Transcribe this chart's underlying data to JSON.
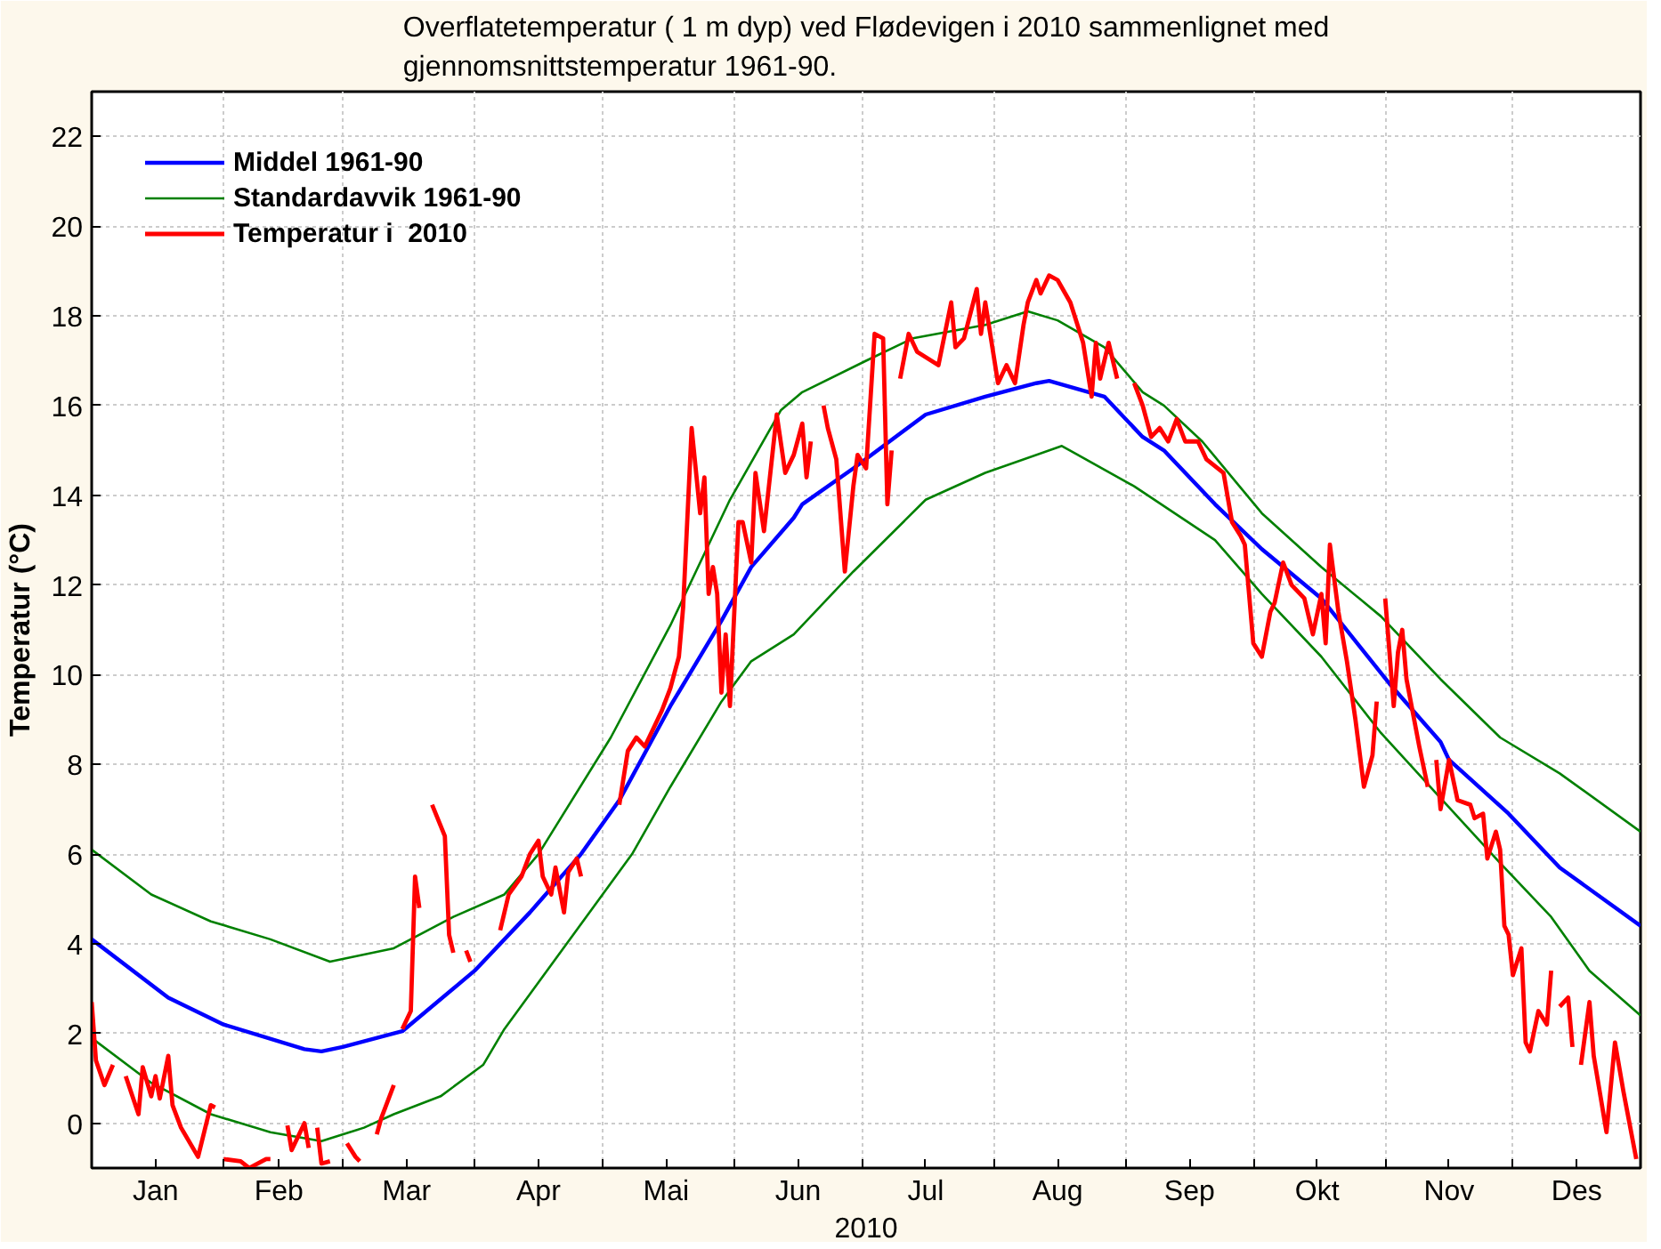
{
  "chart_data": {
    "type": "line",
    "title": "Overflatetemperatur ( 1 m dyp) ved Flødevigen i 2010 sammenlignet med gjennomsnittstemperatur 1961-90.",
    "xlabel": "2010",
    "ylabel": "Temperatur (°C)",
    "xlim": [
      "2010-01-01",
      "2010-12-31"
    ],
    "ylim": [
      -1,
      23
    ],
    "yticks": [
      0,
      2,
      4,
      6,
      8,
      10,
      12,
      14,
      16,
      18,
      20,
      22
    ],
    "xticks": [
      {
        "value": "2010-01-16",
        "label": "Jan"
      },
      {
        "value": "2010-02-01",
        "label": null
      },
      {
        "value": "2010-02-14",
        "label": "Feb"
      },
      {
        "value": "2010-03-01",
        "label": null
      },
      {
        "value": "2010-03-16",
        "label": "Mar"
      },
      {
        "value": "2010-04-01",
        "label": null
      },
      {
        "value": "2010-04-16",
        "label": "Apr"
      },
      {
        "value": "2010-05-01",
        "label": null
      },
      {
        "value": "2010-05-16",
        "label": "Mai"
      },
      {
        "value": "2010-06-01",
        "label": null
      },
      {
        "value": "2010-06-16",
        "label": "Jun"
      },
      {
        "value": "2010-07-01",
        "label": null
      },
      {
        "value": "2010-07-16",
        "label": "Jul"
      },
      {
        "value": "2010-08-01",
        "label": null
      },
      {
        "value": "2010-08-16",
        "label": "Aug"
      },
      {
        "value": "2010-09-01",
        "label": null
      },
      {
        "value": "2010-09-16",
        "label": "Sep"
      },
      {
        "value": "2010-10-01",
        "label": null
      },
      {
        "value": "2010-10-16",
        "label": "Okt"
      },
      {
        "value": "2010-11-01",
        "label": null
      },
      {
        "value": "2010-11-16",
        "label": "Nov"
      },
      {
        "value": "2010-12-01",
        "label": null
      },
      {
        "value": "2010-12-16",
        "label": "Des"
      }
    ],
    "grid": true,
    "legend": "top left",
    "series": [
      {
        "name": "Middel 1961-90",
        "color": "#0000ff",
        "x": [
          "2010-01-01",
          "2010-01-19",
          "2010-02-01",
          "2010-02-20",
          "2010-02-24",
          "2010-03-01",
          "2010-03-15",
          "2010-04-01",
          "2010-04-14",
          "2010-04-26",
          "2010-05-05",
          "2010-05-13",
          "2010-05-17",
          "2010-05-29",
          "2010-06-05",
          "2010-06-15",
          "2010-06-17",
          "2010-06-29",
          "2010-07-16",
          "2010-07-30",
          "2010-08-11",
          "2010-08-14",
          "2010-08-27",
          "2010-09-05",
          "2010-09-10",
          "2010-09-22",
          "2010-10-03",
          "2010-10-17",
          "2010-11-02",
          "2010-11-14",
          "2010-11-16",
          "2010-11-30",
          "2010-12-12",
          "2010-12-31"
        ],
        "values": [
          4.1,
          2.8,
          2.2,
          1.65,
          1.6,
          1.7,
          2.05,
          3.4,
          4.7,
          6.0,
          7.2,
          8.6,
          9.3,
          11.2,
          12.4,
          13.5,
          13.8,
          14.6,
          15.8,
          16.2,
          16.5,
          16.55,
          16.2,
          15.3,
          15.0,
          13.8,
          12.8,
          11.7,
          9.8,
          8.5,
          8.1,
          6.9,
          5.7,
          4.4
        ]
      },
      {
        "name": "Standardavvik 1961-90",
        "color": "#008000",
        "x": [
          "2010-01-01",
          "2010-01-15",
          "2010-01-29",
          "2010-02-12",
          "2010-02-26",
          "2010-03-13",
          "2010-03-27",
          "2010-04-08",
          "2010-04-16",
          "2010-05-03",
          "2010-05-17",
          "2010-05-31",
          "2010-06-12",
          "2010-06-17",
          "2010-07-02",
          "2010-07-13",
          "2010-07-30",
          "2010-08-09",
          "2010-08-16",
          "2010-08-27",
          "2010-09-05",
          "2010-09-10",
          "2010-09-19",
          "2010-10-03",
          "2010-10-17",
          "2010-10-31",
          "2010-11-14",
          "2010-11-28",
          "2010-12-12",
          "2010-12-31"
        ],
        "values": [
          6.1,
          5.1,
          4.5,
          4.1,
          3.6,
          3.9,
          4.6,
          5.1,
          6.0,
          8.6,
          11.1,
          13.9,
          15.9,
          16.3,
          17.0,
          17.5,
          17.8,
          18.1,
          17.9,
          17.3,
          16.3,
          16.0,
          15.2,
          13.6,
          12.4,
          11.3,
          9.9,
          8.6,
          7.8,
          6.5
        ]
      },
      {
        "color": "#008000",
        "x": [
          "2010-01-01",
          "2010-01-15",
          "2010-01-29",
          "2010-02-12",
          "2010-02-24",
          "2010-03-06",
          "2010-03-13",
          "2010-03-24",
          "2010-04-03",
          "2010-04-08",
          "2010-05-08",
          "2010-05-17",
          "2010-05-29",
          "2010-06-05",
          "2010-06-15",
          "2010-06-20",
          "2010-06-29",
          "2010-07-16",
          "2010-07-30",
          "2010-08-17",
          "2010-09-03",
          "2010-09-22",
          "2010-10-03",
          "2010-10-17",
          "2010-10-31",
          "2010-11-14",
          "2010-11-28",
          "2010-12-10",
          "2010-12-19",
          "2010-12-31"
        ],
        "values": [
          1.9,
          0.9,
          0.2,
          -0.2,
          -0.4,
          -0.1,
          0.2,
          0.6,
          1.3,
          2.1,
          6.0,
          7.5,
          9.4,
          10.3,
          10.9,
          11.4,
          12.3,
          13.9,
          14.5,
          15.1,
          14.2,
          13.0,
          11.8,
          10.4,
          8.7,
          7.25,
          5.8,
          4.6,
          3.4,
          2.4
        ]
      },
      {
        "name": "Temperatur i  2010",
        "color": "#ff0000",
        "x": [
          "2010-01-01",
          "2010-01-02",
          "2010-01-04",
          "2010-01-06",
          "2010-01-07",
          "2010-01-09",
          "2010-01-12",
          "2010-01-13",
          "2010-01-15",
          "2010-01-16",
          "2010-01-17",
          "2010-01-19",
          "2010-01-20",
          "2010-01-22",
          "2010-01-26",
          "2010-01-29",
          "2010-01-30",
          "2010-01-31",
          "2010-02-01",
          "2010-02-05",
          "2010-02-07",
          "2010-02-11",
          "2010-02-12",
          "2010-02-13",
          "2010-02-16",
          "2010-02-17",
          "2010-02-20",
          "2010-02-21",
          "2010-02-22",
          "2010-02-23",
          "2010-02-24",
          "2010-02-26",
          "2010-02-27",
          "2010-03-02",
          "2010-03-04",
          "2010-03-05",
          "2010-03-06",
          "2010-03-09",
          "2010-03-10",
          "2010-03-13",
          "2010-03-14",
          "2010-03-15",
          "2010-03-17",
          "2010-03-18",
          "2010-03-19",
          "2010-03-20",
          "2010-03-22",
          "2010-03-25",
          "2010-03-26",
          "2010-03-27",
          "2010-03-28",
          "2010-03-30",
          "2010-03-31",
          "2010-04-01",
          "2010-04-07",
          "2010-04-09",
          "2010-04-12",
          "2010-04-14",
          "2010-04-16",
          "2010-04-17",
          "2010-04-19",
          "2010-04-20",
          "2010-04-22",
          "2010-04-23",
          "2010-04-25",
          "2010-04-26",
          "2010-04-27",
          "2010-05-05",
          "2010-05-07",
          "2010-05-09",
          "2010-05-11",
          "2010-05-13",
          "2010-05-15",
          "2010-05-17",
          "2010-05-19",
          "2010-05-20",
          "2010-05-22",
          "2010-05-24",
          "2010-05-25",
          "2010-05-26",
          "2010-05-27",
          "2010-05-28",
          "2010-05-29",
          "2010-05-30",
          "2010-05-31",
          "2010-06-02",
          "2010-06-03",
          "2010-06-05",
          "2010-06-06",
          "2010-06-08",
          "2010-06-11",
          "2010-06-13",
          "2010-06-15",
          "2010-06-17",
          "2010-06-18",
          "2010-06-19",
          "2010-06-20",
          "2010-06-22",
          "2010-06-23",
          "2010-06-25",
          "2010-06-27",
          "2010-06-29",
          "2010-06-30",
          "2010-07-02",
          "2010-07-04",
          "2010-07-06",
          "2010-07-07",
          "2010-07-08",
          "2010-07-09",
          "2010-07-10",
          "2010-07-12",
          "2010-07-14",
          "2010-07-19",
          "2010-07-22",
          "2010-07-23",
          "2010-07-25",
          "2010-07-28",
          "2010-07-29",
          "2010-07-30",
          "2010-08-02",
          "2010-08-04",
          "2010-08-06",
          "2010-08-08",
          "2010-08-09",
          "2010-08-11",
          "2010-08-12",
          "2010-08-14",
          "2010-08-16",
          "2010-08-19",
          "2010-08-20",
          "2010-08-22",
          "2010-08-24",
          "2010-08-25",
          "2010-08-26",
          "2010-08-28",
          "2010-08-30",
          "2010-08-31",
          "2010-09-03",
          "2010-09-05",
          "2010-09-07",
          "2010-09-09",
          "2010-09-11",
          "2010-09-13",
          "2010-09-15",
          "2010-09-18",
          "2010-09-20",
          "2010-09-24",
          "2010-09-26",
          "2010-09-28",
          "2010-09-29",
          "2010-10-01",
          "2010-10-03",
          "2010-10-05",
          "2010-10-06",
          "2010-10-08",
          "2010-10-10",
          "2010-10-13",
          "2010-10-15",
          "2010-10-17",
          "2010-10-18",
          "2010-10-19",
          "2010-10-21",
          "2010-10-23",
          "2010-10-25",
          "2010-10-27",
          "2010-10-29",
          "2010-10-30",
          "2010-10-31",
          "2010-11-01",
          "2010-11-03",
          "2010-11-04",
          "2010-11-05",
          "2010-11-06",
          "2010-11-09",
          "2010-11-11",
          "2010-11-12",
          "2010-11-13",
          "2010-11-14",
          "2010-11-16",
          "2010-11-18",
          "2010-11-21",
          "2010-11-22",
          "2010-11-24",
          "2010-11-25",
          "2010-11-27",
          "2010-11-28",
          "2010-11-29",
          "2010-11-30",
          "2010-12-01",
          "2010-12-03",
          "2010-12-04",
          "2010-12-05",
          "2010-12-07",
          "2010-12-09",
          "2010-12-10",
          "2010-12-11",
          "2010-12-12",
          "2010-12-14",
          "2010-12-15",
          "2010-12-16",
          "2010-12-17",
          "2010-12-19",
          "2010-12-20",
          "2010-12-23",
          "2010-12-25",
          "2010-12-27",
          "2010-12-28",
          "2010-12-30"
        ],
        "values": [
          2.7,
          1.4,
          0.85,
          1.3,
          null,
          1.05,
          0.2,
          1.25,
          0.6,
          1.05,
          0.55,
          1.5,
          0.4,
          -0.1,
          -0.75,
          0.4,
          0.35,
          null,
          -0.8,
          -0.85,
          -1.0,
          -0.8,
          -0.8,
          null,
          -0.05,
          -0.6,
          0,
          -0.55,
          null,
          -0.1,
          -0.9,
          -0.85,
          null,
          -0.45,
          -0.75,
          -0.85,
          null,
          -0.25,
          0.1,
          0.85,
          null,
          2.1,
          2.5,
          5.5,
          4.8,
          null,
          7.1,
          6.4,
          4.2,
          3.8,
          null,
          3.85,
          3.6,
          null,
          4.3,
          5.1,
          5.5,
          6.0,
          6.3,
          5.5,
          5.1,
          5.7,
          4.7,
          5.6,
          5.9,
          5.5,
          null,
          7.1,
          8.3,
          8.6,
          8.4,
          8.8,
          9.2,
          9.7,
          10.4,
          11.5,
          15.5,
          13.6,
          14.4,
          11.8,
          12.4,
          11.8,
          9.6,
          10.9,
          9.3,
          13.4,
          13.4,
          12.5,
          14.5,
          13.2,
          15.8,
          14.5,
          14.9,
          15.6,
          14.4,
          15.2,
          null,
          16.0,
          15.5,
          14.8,
          12.3,
          14.2,
          14.9,
          14.6,
          17.6,
          17.5,
          13.8,
          15.0,
          null,
          16.6,
          17.6,
          17.2,
          16.9,
          18.3,
          17.3,
          17.5,
          18.6,
          17.6,
          18.3,
          16.5,
          16.9,
          16.5,
          17.8,
          18.3,
          18.8,
          18.5,
          18.9,
          18.8,
          18.3,
          18.0,
          17.4,
          16.2,
          17.4,
          16.6,
          17.4,
          16.6,
          null,
          16.5,
          16.0,
          15.3,
          15.5,
          15.2,
          15.7,
          15.2,
          15.2,
          14.8,
          14.5,
          13.4,
          13.1,
          12.9,
          10.7,
          10.4,
          11.4,
          11.6,
          12.5,
          12.0,
          11.7,
          10.9,
          11.8,
          10.7,
          12.9,
          11.4,
          10.3,
          9.0,
          7.5,
          8.2,
          9.4,
          null,
          11.7,
          9.3,
          10.5,
          11.0,
          9.9,
          8.4,
          7.5,
          null,
          8.1,
          7.0,
          8.1,
          7.2,
          7.1,
          6.8,
          6.9,
          5.9,
          6.5,
          6.1,
          4.4,
          4.2,
          3.3,
          3.9,
          1.8,
          1.6,
          2.5,
          2.2,
          3.4,
          null,
          2.6,
          2.8,
          1.7,
          null,
          1.3,
          2.7,
          1.5,
          -0.2,
          1.8,
          0.7,
          0.2,
          -0.8
        ]
      }
    ]
  }
}
